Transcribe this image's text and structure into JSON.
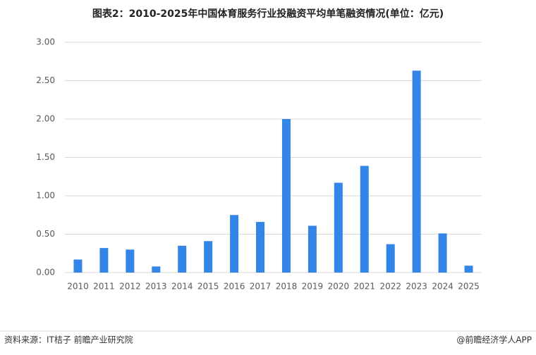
{
  "chart_data": {
    "type": "bar",
    "title": "图表2：2010-2025年中国体育服务行业投融资平均单笔融资情况(单位：亿元)",
    "categories": [
      "2010",
      "2011",
      "2012",
      "2013",
      "2014",
      "2015",
      "2016",
      "2017",
      "2018",
      "2019",
      "2020",
      "2021",
      "2022",
      "2023",
      "2024",
      "2025"
    ],
    "values": [
      0.17,
      0.32,
      0.3,
      0.08,
      0.35,
      0.41,
      0.75,
      0.66,
      2.0,
      0.61,
      1.17,
      1.39,
      0.37,
      2.63,
      0.51,
      0.09
    ],
    "color": "#3385e8",
    "ylim": [
      0,
      3
    ],
    "yticks": [
      {
        "value": 0,
        "label": "0.00"
      },
      {
        "value": 0.5,
        "label": "0.50"
      },
      {
        "value": 1,
        "label": "1.00"
      },
      {
        "value": 1.5,
        "label": "1.50"
      },
      {
        "value": 2,
        "label": "2.00"
      },
      {
        "value": 2.5,
        "label": "2.50"
      },
      {
        "value": 3,
        "label": "3.00"
      }
    ],
    "grid": true,
    "source": "资料来源：IT桔子 前瞻产业研究院",
    "brand": "@前瞻经济学人APP"
  }
}
